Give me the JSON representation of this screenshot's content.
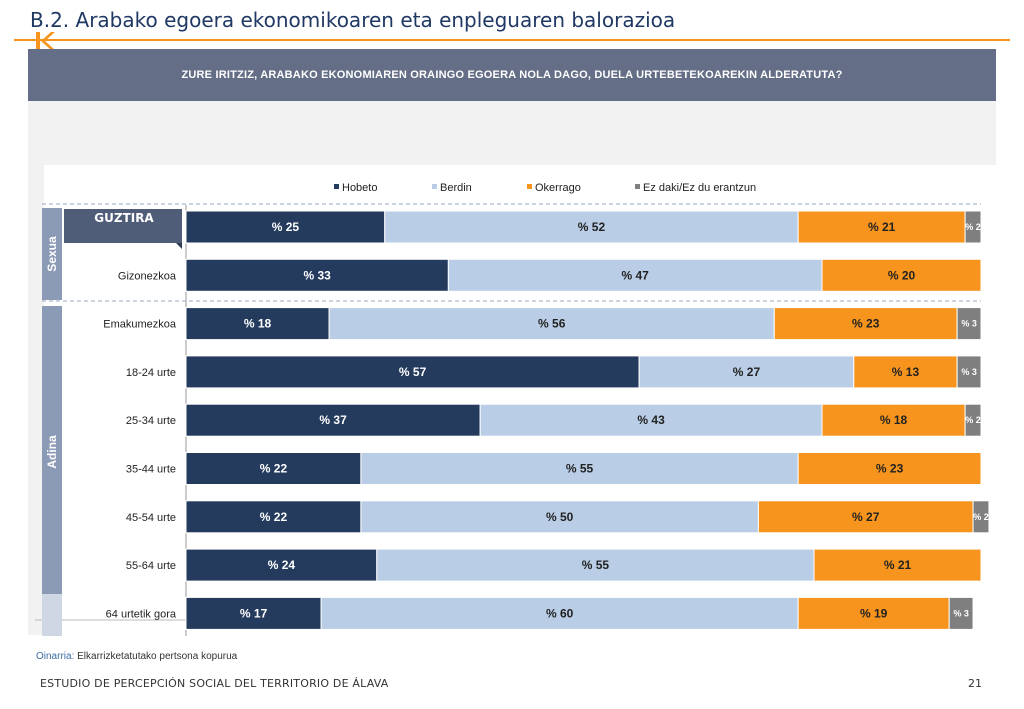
{
  "page": {
    "title": "B.2. Arabako egoera ekonomikoaren eta enpleguaren balorazioa",
    "question": "ZURE IRITZIZ, ARABAKO EKONOMIAREN ORAINGO EGOERA NOLA DAGO, DUELA URTEBETEKOAREKIN ALDERATUTA?",
    "footnote_label": "Oinarria:",
    "footnote_text": " Elkarrizketatutako pertsona kopurua",
    "footer": "ESTUDIO DE PERCEPCIÓN SOCIAL DEL TERRITORIO DE ÁLAVA",
    "page_number": "21"
  },
  "colors": {
    "accent": "#f7941d",
    "title": "#1f3864",
    "header_band": "#646e86",
    "group_band": "#8c9bb5"
  },
  "chart_data": {
    "type": "bar",
    "orientation": "horizontal",
    "stacked": true,
    "percent_prefix": "% ",
    "legend_position": "top",
    "xlim": [
      0,
      100
    ],
    "categories": [
      "GUZTIRA",
      "Gizonezkoa",
      "Emakumezkoa",
      "18-24 urte",
      "25-34 urte",
      "35-44 urte",
      "45-54 urte",
      "55-64 urte",
      "64 urtetik gora"
    ],
    "groups": [
      {
        "name": "Sexua",
        "start": 0,
        "end": 2
      },
      {
        "name": "Adina",
        "start": 3,
        "end": 8
      }
    ],
    "series": [
      {
        "name": "Hobeto",
        "color": "#243b5e",
        "values": [
          25,
          33,
          18,
          57,
          37,
          22,
          22,
          24,
          17
        ]
      },
      {
        "name": "Berdin",
        "color": "#b9cde6",
        "values": [
          52,
          47,
          56,
          27,
          43,
          55,
          50,
          55,
          60
        ]
      },
      {
        "name": "Okerrago",
        "color": "#f7941d",
        "values": [
          21,
          20,
          23,
          13,
          18,
          23,
          27,
          21,
          19
        ]
      },
      {
        "name": "Ez daki/Ez du erantzun",
        "color": "#7f7f7f",
        "values": [
          2,
          0,
          3,
          3,
          2,
          0,
          2,
          0,
          3
        ]
      }
    ]
  }
}
